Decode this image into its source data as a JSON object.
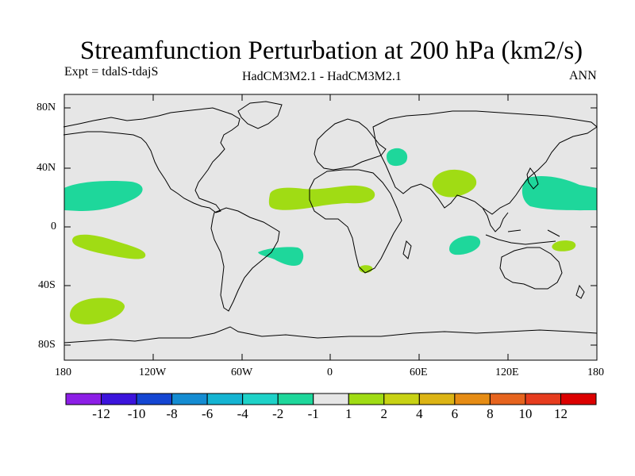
{
  "title": "Streamfunction Perturbation at 200 hPa (km2/s)",
  "subtitle_left": "Expt = tdalS-tdajS",
  "subtitle_center": "HadCM3M2.1 - HadCM3M2.1",
  "subtitle_right": "ANN",
  "colors": {
    "ocean_bg": "#e6e6e6",
    "negative_green": "#1ed79b",
    "positive_green": "#a0dc14",
    "coast": "#000000"
  },
  "chart_data": {
    "type": "map",
    "projection": "cylindrical equidistant",
    "lon_range": [
      -180,
      180
    ],
    "lat_range": [
      -90,
      90
    ],
    "x_tick_labels": [
      "180",
      "120W",
      "60W",
      "0",
      "60E",
      "120E",
      "180"
    ],
    "y_tick_labels": [
      "80N",
      "40N",
      "0",
      "40S",
      "80S"
    ],
    "colorbar": {
      "labels": [
        "-12",
        "-10",
        "-8",
        "-6",
        "-4",
        "-2",
        "-1",
        "1",
        "2",
        "4",
        "6",
        "8",
        "10",
        "12"
      ],
      "colors": [
        "#8c1ee6",
        "#3c14dc",
        "#1446d2",
        "#148cd2",
        "#14b4d2",
        "#1ed2c8",
        "#1ed79b",
        "#e6e6e6",
        "#a0dc14",
        "#c8d214",
        "#dcb414",
        "#e68c14",
        "#e6641e",
        "#e63c1e",
        "#dc0000"
      ]
    },
    "anomalies": [
      {
        "name": "N Pacific east",
        "lon": -150,
        "lat": 21,
        "sign": "negative",
        "level": "-2 to -1"
      },
      {
        "name": "N Pacific west",
        "lon": 160,
        "lat": 17,
        "sign": "negative",
        "level": "-2 to -1"
      },
      {
        "name": "Caspian",
        "lon": 48,
        "lat": 49,
        "sign": "negative",
        "level": "-2 to -1"
      },
      {
        "name": "Indian Ocean",
        "lon": 92,
        "lat": -12,
        "sign": "negative",
        "level": "-2 to -1"
      },
      {
        "name": "S Atlantic",
        "lon": -40,
        "lat": -20,
        "sign": "negative",
        "level": "-2 to -1"
      },
      {
        "name": "Tropical Atlantic-Africa",
        "lon": -5,
        "lat": 20,
        "sign": "positive",
        "level": "1 to 2"
      },
      {
        "name": "Tibet",
        "lon": 85,
        "lat": 30,
        "sign": "positive",
        "level": "1 to 2"
      },
      {
        "name": "S Pacific",
        "lon": -150,
        "lat": -14,
        "sign": "positive",
        "level": "1 to 2"
      },
      {
        "name": "S Pacific high lat",
        "lon": -160,
        "lat": -57,
        "sign": "positive",
        "level": "1 to 2"
      },
      {
        "name": "Coral Sea",
        "lon": 160,
        "lat": -13,
        "sign": "positive",
        "level": "1 to 2"
      },
      {
        "name": "S Africa",
        "lon": 25,
        "lat": -30,
        "sign": "positive",
        "level": "1 to 2"
      }
    ]
  }
}
